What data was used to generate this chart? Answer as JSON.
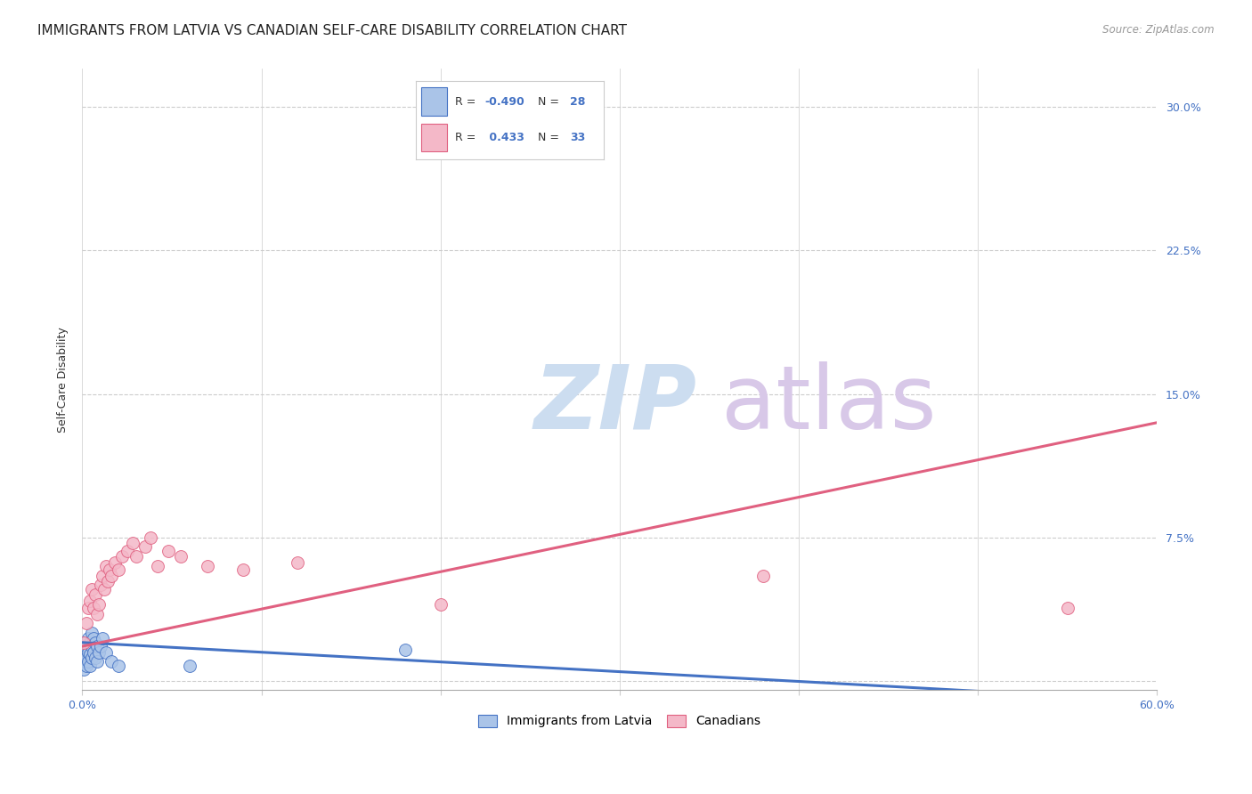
{
  "title": "IMMIGRANTS FROM LATVIA VS CANADIAN SELF-CARE DISABILITY CORRELATION CHART",
  "source": "Source: ZipAtlas.com",
  "ylabel": "Self-Care Disability",
  "xlim": [
    0,
    0.6
  ],
  "ylim": [
    -0.005,
    0.32
  ],
  "xticks": [
    0.0,
    0.1,
    0.2,
    0.3,
    0.4,
    0.5,
    0.6
  ],
  "xticklabels": [
    "0.0%",
    "",
    "",
    "",
    "",
    "",
    "60.0%"
  ],
  "yticks": [
    0.0,
    0.075,
    0.15,
    0.225,
    0.3
  ],
  "yticklabels": [
    "",
    "7.5%",
    "15.0%",
    "22.5%",
    "30.0%"
  ],
  "grid_color": "#cccccc",
  "background_color": "#ffffff",
  "blue_scatter_x": [
    0.001,
    0.001,
    0.002,
    0.002,
    0.002,
    0.003,
    0.003,
    0.003,
    0.004,
    0.004,
    0.004,
    0.005,
    0.005,
    0.005,
    0.006,
    0.006,
    0.007,
    0.007,
    0.008,
    0.008,
    0.009,
    0.01,
    0.011,
    0.013,
    0.016,
    0.02,
    0.06,
    0.18
  ],
  "blue_scatter_y": [
    0.01,
    0.006,
    0.018,
    0.012,
    0.008,
    0.022,
    0.015,
    0.01,
    0.02,
    0.014,
    0.008,
    0.025,
    0.018,
    0.012,
    0.022,
    0.015,
    0.02,
    0.012,
    0.018,
    0.01,
    0.015,
    0.018,
    0.022,
    0.015,
    0.01,
    0.008,
    0.008,
    0.016
  ],
  "pink_scatter_x": [
    0.001,
    0.002,
    0.003,
    0.004,
    0.005,
    0.006,
    0.007,
    0.008,
    0.009,
    0.01,
    0.011,
    0.012,
    0.013,
    0.014,
    0.015,
    0.016,
    0.018,
    0.02,
    0.022,
    0.025,
    0.028,
    0.03,
    0.035,
    0.038,
    0.042,
    0.048,
    0.055,
    0.07,
    0.09,
    0.12,
    0.2,
    0.38,
    0.55
  ],
  "pink_scatter_y": [
    0.02,
    0.03,
    0.038,
    0.042,
    0.048,
    0.038,
    0.045,
    0.035,
    0.04,
    0.05,
    0.055,
    0.048,
    0.06,
    0.052,
    0.058,
    0.055,
    0.062,
    0.058,
    0.065,
    0.068,
    0.072,
    0.065,
    0.07,
    0.075,
    0.06,
    0.068,
    0.065,
    0.06,
    0.058,
    0.062,
    0.04,
    0.055,
    0.038
  ],
  "blue_color": "#aac4e8",
  "blue_line_color": "#4472c4",
  "pink_color": "#f4b8c8",
  "pink_line_color": "#e06080",
  "blue_R": -0.49,
  "blue_N": 28,
  "pink_R": 0.433,
  "pink_N": 33,
  "blue_trend_x": [
    0.0,
    0.55
  ],
  "blue_trend_y": [
    0.02,
    -0.008
  ],
  "pink_trend_x": [
    0.0,
    0.6
  ],
  "pink_trend_y": [
    0.018,
    0.135
  ],
  "legend_label_blue": "Immigrants from Latvia",
  "legend_label_pink": "Canadians",
  "watermark_zip": "ZIP",
  "watermark_atlas": "atlas",
  "watermark_color_zip": "#ccddf0",
  "watermark_color_atlas": "#d8c8e8",
  "title_fontsize": 11,
  "axis_fontsize": 9,
  "tick_fontsize": 9
}
